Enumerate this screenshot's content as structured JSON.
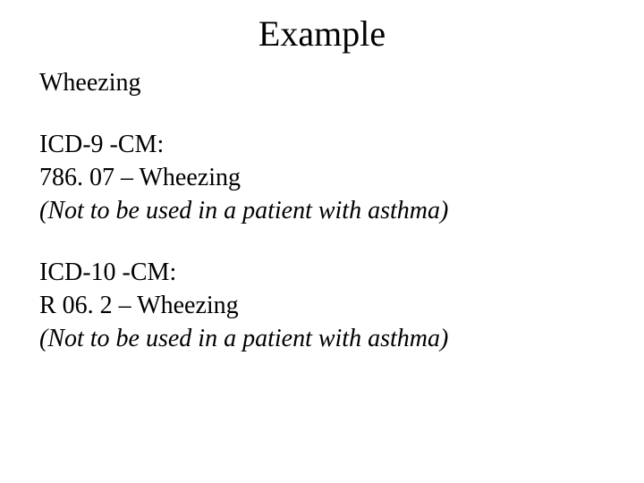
{
  "title": "Example",
  "condition": "Wheezing",
  "sections": {
    "icd9": {
      "label": "ICD-9 -CM:",
      "code_line": "786. 07 – Wheezing",
      "note": "(Not to be used in a patient with asthma)"
    },
    "icd10": {
      "label": "ICD-10 -CM:",
      "code_line": "R 06. 2 – Wheezing",
      "note": "(Not to be used in a patient with asthma)"
    }
  },
  "style": {
    "background_color": "#ffffff",
    "text_color": "#000000",
    "title_fontsize": 40,
    "body_fontsize": 28,
    "font_family": "Times New Roman"
  }
}
